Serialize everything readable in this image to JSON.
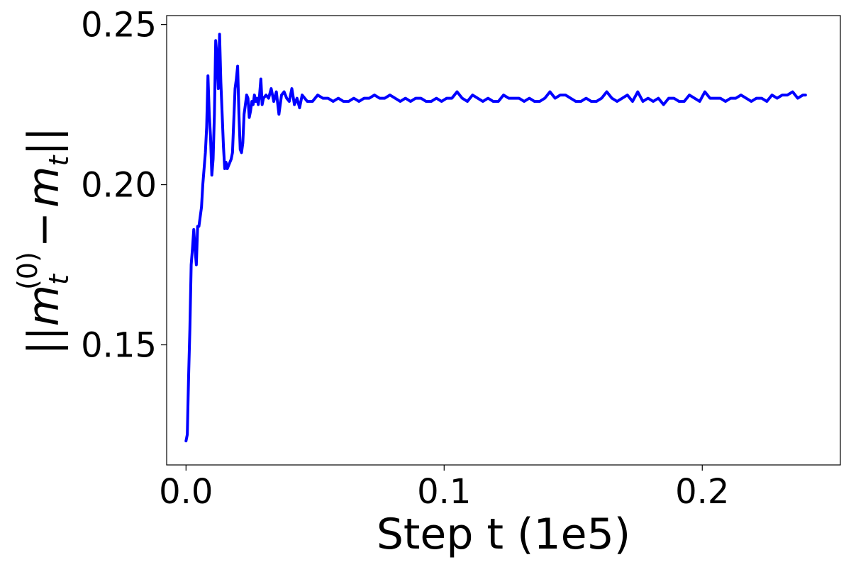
{
  "chart_data": {
    "type": "line",
    "title": "",
    "xlabel": "Step t (1e5)",
    "ylabel": "||m_t^(0) − m_t||",
    "ylabel_parts": {
      "bars_left": "||",
      "base": "m",
      "sub": "t",
      "sup": "(0)",
      "minus": "−",
      "base2": "m",
      "sub2": "t",
      "bars_right": "||"
    },
    "xlim": [
      -0.0075,
      0.2535
    ],
    "ylim": [
      0.1125,
      0.2528
    ],
    "x_ticks": [
      0.0,
      0.1,
      0.2
    ],
    "x_tick_labels": [
      "0.0",
      "0.1",
      "0.2"
    ],
    "y_ticks": [
      0.15,
      0.2,
      0.25
    ],
    "y_tick_labels": [
      "0.15",
      "0.20",
      "0.25"
    ],
    "grid": false,
    "legend": "none",
    "series": [
      {
        "color": "#0000ff",
        "x": [
          0.0,
          0.0005,
          0.001,
          0.0015,
          0.002,
          0.0025,
          0.003,
          0.0035,
          0.004,
          0.0045,
          0.005,
          0.0055,
          0.006,
          0.0065,
          0.007,
          0.0075,
          0.008,
          0.0085,
          0.009,
          0.0095,
          0.01,
          0.0105,
          0.011,
          0.0115,
          0.012,
          0.0125,
          0.013,
          0.0135,
          0.014,
          0.0145,
          0.015,
          0.0155,
          0.016,
          0.0165,
          0.017,
          0.0175,
          0.018,
          0.0185,
          0.019,
          0.0195,
          0.02,
          0.0205,
          0.021,
          0.0215,
          0.022,
          0.0225,
          0.023,
          0.0235,
          0.024,
          0.0245,
          0.025,
          0.0255,
          0.026,
          0.0265,
          0.027,
          0.0275,
          0.028,
          0.0285,
          0.029,
          0.0295,
          0.03,
          0.031,
          0.032,
          0.033,
          0.034,
          0.035,
          0.036,
          0.037,
          0.038,
          0.039,
          0.04,
          0.041,
          0.042,
          0.043,
          0.044,
          0.045,
          0.047,
          0.049,
          0.051,
          0.053,
          0.055,
          0.057,
          0.059,
          0.061,
          0.063,
          0.065,
          0.067,
          0.069,
          0.071,
          0.073,
          0.075,
          0.077,
          0.079,
          0.081,
          0.083,
          0.085,
          0.087,
          0.089,
          0.091,
          0.093,
          0.095,
          0.097,
          0.099,
          0.101,
          0.103,
          0.105,
          0.107,
          0.109,
          0.111,
          0.113,
          0.115,
          0.117,
          0.119,
          0.121,
          0.123,
          0.125,
          0.127,
          0.129,
          0.131,
          0.133,
          0.135,
          0.137,
          0.139,
          0.141,
          0.143,
          0.145,
          0.147,
          0.149,
          0.151,
          0.153,
          0.155,
          0.157,
          0.159,
          0.161,
          0.163,
          0.165,
          0.167,
          0.169,
          0.171,
          0.173,
          0.175,
          0.177,
          0.179,
          0.181,
          0.183,
          0.185,
          0.187,
          0.189,
          0.191,
          0.193,
          0.195,
          0.197,
          0.199,
          0.201,
          0.203,
          0.205,
          0.207,
          0.209,
          0.211,
          0.213,
          0.215,
          0.217,
          0.219,
          0.221,
          0.223,
          0.225,
          0.227,
          0.229,
          0.231,
          0.233,
          0.235,
          0.237,
          0.239,
          0.24
        ],
        "y": [
          0.12,
          0.122,
          0.14,
          0.155,
          0.175,
          0.18,
          0.186,
          0.18,
          0.175,
          0.187,
          0.187,
          0.19,
          0.193,
          0.2,
          0.205,
          0.21,
          0.218,
          0.234,
          0.222,
          0.215,
          0.203,
          0.208,
          0.222,
          0.245,
          0.24,
          0.23,
          0.247,
          0.232,
          0.222,
          0.212,
          0.205,
          0.207,
          0.205,
          0.206,
          0.207,
          0.208,
          0.21,
          0.22,
          0.23,
          0.233,
          0.237,
          0.222,
          0.211,
          0.21,
          0.213,
          0.222,
          0.225,
          0.228,
          0.227,
          0.221,
          0.223,
          0.226,
          0.225,
          0.228,
          0.226,
          0.227,
          0.225,
          0.228,
          0.233,
          0.225,
          0.227,
          0.228,
          0.227,
          0.23,
          0.226,
          0.229,
          0.222,
          0.228,
          0.229,
          0.227,
          0.226,
          0.23,
          0.225,
          0.227,
          0.224,
          0.228,
          0.226,
          0.226,
          0.228,
          0.227,
          0.227,
          0.226,
          0.227,
          0.226,
          0.226,
          0.227,
          0.226,
          0.227,
          0.227,
          0.228,
          0.227,
          0.227,
          0.228,
          0.227,
          0.226,
          0.227,
          0.226,
          0.227,
          0.227,
          0.226,
          0.226,
          0.227,
          0.226,
          0.227,
          0.227,
          0.229,
          0.227,
          0.226,
          0.228,
          0.227,
          0.226,
          0.227,
          0.226,
          0.226,
          0.228,
          0.227,
          0.227,
          0.227,
          0.226,
          0.227,
          0.226,
          0.226,
          0.227,
          0.229,
          0.227,
          0.228,
          0.228,
          0.227,
          0.226,
          0.226,
          0.227,
          0.226,
          0.226,
          0.227,
          0.229,
          0.227,
          0.226,
          0.227,
          0.228,
          0.226,
          0.229,
          0.226,
          0.227,
          0.226,
          0.227,
          0.225,
          0.227,
          0.227,
          0.226,
          0.226,
          0.228,
          0.227,
          0.226,
          0.229,
          0.227,
          0.227,
          0.227,
          0.226,
          0.227,
          0.227,
          0.228,
          0.227,
          0.226,
          0.227,
          0.227,
          0.226,
          0.228,
          0.227,
          0.228,
          0.228,
          0.229,
          0.227,
          0.228,
          0.228
        ]
      }
    ]
  }
}
